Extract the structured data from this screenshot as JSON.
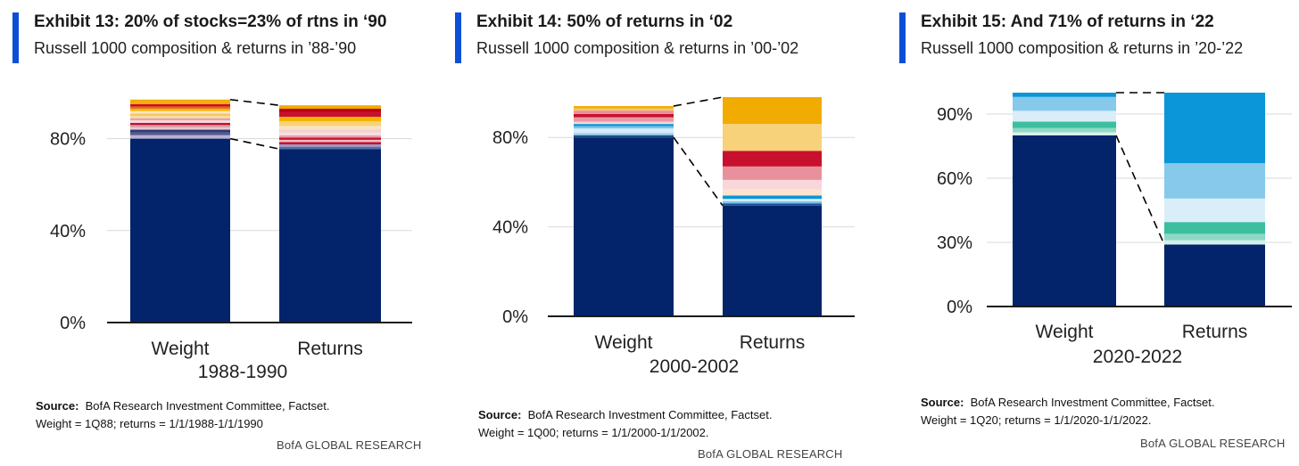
{
  "colors": {
    "accent": "#0b4fd6",
    "navy": "#03246b",
    "grid": "#d9d9d9",
    "connector": "#000000"
  },
  "exhibits": [
    {
      "title": "Exhibit 13: 20% of stocks=23% of rtns in ‘90",
      "subtitle": "Russell 1000 composition & returns in ’88-’90",
      "source_label": "Source:",
      "source_text": "BofA Research Investment Committee, Factset.",
      "note": "Weight = 1Q88;  returns = 1/1/1988-1/1/1990",
      "brand": "BofA GLOBAL RESEARCH"
    },
    {
      "title": "Exhibit 14: 50% of returns in ‘02",
      "subtitle": "Russell 1000 composition & returns in ’00-’02",
      "source_label": "Source:",
      "source_text": "BofA Research Investment Committee, Factset.",
      "note": "Weight = 1Q00;  returns = 1/1/2000-1/1/2002.",
      "brand": "BofA GLOBAL RESEARCH"
    },
    {
      "title": "Exhibit 15: And 71% of returns in ‘22",
      "subtitle": "Russell 1000 composition & returns in ’20-’22",
      "source_label": "Source:",
      "source_text": "BofA Research Investment Committee, Factset.",
      "note": "Weight = 1Q20;  returns = 1/1/2020-1/1/2022.",
      "brand": "BofA GLOBAL RESEARCH"
    }
  ],
  "chart_data": [
    {
      "type": "bar",
      "stacked": true,
      "categories": [
        "Weight",
        "Returns"
      ],
      "xlabel": "1988-1990",
      "ylim": [
        0,
        100
      ],
      "yticks": [
        0,
        40,
        80
      ],
      "tick_suffix": "%",
      "grid": true,
      "connectors": true,
      "stacks": [
        {
          "category": "Weight",
          "segments": [
            {
              "value": 80,
              "color": "#03246b"
            },
            {
              "value": 1.5,
              "color": "#b8b2d6"
            },
            {
              "value": 1.2,
              "color": "#5a5a8c"
            },
            {
              "value": 1.2,
              "color": "#2e3a78"
            },
            {
              "value": 1.0,
              "color": "#e8c9cf"
            },
            {
              "value": 1.0,
              "color": "#d6a2ac"
            },
            {
              "value": 1.0,
              "color": "#c8102e"
            },
            {
              "value": 1.0,
              "color": "#f7e0e3"
            },
            {
              "value": 1.0,
              "color": "#e8a0a9"
            },
            {
              "value": 1.0,
              "color": "#f9dca0"
            },
            {
              "value": 1.1,
              "color": "#f4c95d"
            },
            {
              "value": 1.0,
              "color": "#fde8c4"
            },
            {
              "value": 1.0,
              "color": "#f5b700"
            },
            {
              "value": 1.0,
              "color": "#e46b1e"
            },
            {
              "value": 1.0,
              "color": "#c8102e"
            },
            {
              "value": 1.0,
              "color": "#f5a800"
            },
            {
              "value": 1.0,
              "color": "#f2ab00"
            }
          ]
        },
        {
          "category": "Returns",
          "segments": [
            {
              "value": 75.5,
              "color": "#03246b"
            },
            {
              "value": 1.0,
              "color": "#5b6aa0"
            },
            {
              "value": 1.0,
              "color": "#9a9cc8"
            },
            {
              "value": 1.0,
              "color": "#c8102e"
            },
            {
              "value": 1.0,
              "color": "#f4b9c0"
            },
            {
              "value": 1.0,
              "color": "#c8102e"
            },
            {
              "value": 1.0,
              "color": "#e8a0a9"
            },
            {
              "value": 1.2,
              "color": "#f7dfe2"
            },
            {
              "value": 1.3,
              "color": "#f3cdd2"
            },
            {
              "value": 1.5,
              "color": "#f8e4c0"
            },
            {
              "value": 2.0,
              "color": "#f7d27a"
            },
            {
              "value": 2.0,
              "color": "#f4b400"
            },
            {
              "value": 2.0,
              "color": "#c8102e"
            },
            {
              "value": 1.5,
              "color": "#b8000f"
            },
            {
              "value": 1.5,
              "color": "#f2a900"
            }
          ]
        }
      ],
      "connector_values": [
        100,
        80
      ]
    },
    {
      "type": "bar",
      "stacked": true,
      "categories": [
        "Weight",
        "Returns"
      ],
      "xlabel": "2000-2002",
      "ylim": [
        0,
        100
      ],
      "yticks": [
        0,
        40,
        80
      ],
      "tick_suffix": "%",
      "grid": true,
      "connectors": true,
      "stacks": [
        {
          "category": "Weight",
          "segments": [
            {
              "value": 80,
              "color": "#03246b"
            },
            {
              "value": 1.0,
              "color": "#1a4f8a"
            },
            {
              "value": 1.0,
              "color": "#9fd0ee"
            },
            {
              "value": 2.0,
              "color": "#d6ecf8"
            },
            {
              "value": 1.0,
              "color": "#7cc4e8"
            },
            {
              "value": 1.0,
              "color": "#0a96d8"
            },
            {
              "value": 1.0,
              "color": "#f6d6d6"
            },
            {
              "value": 2.0,
              "color": "#e89aa4"
            },
            {
              "value": 1.5,
              "color": "#c8102e"
            },
            {
              "value": 1.5,
              "color": "#e8919c"
            },
            {
              "value": 1.0,
              "color": "#f5c76b"
            },
            {
              "value": 1.0,
              "color": "#f2ab00"
            }
          ]
        },
        {
          "category": "Returns",
          "segments": [
            {
              "value": 49.5,
              "color": "#03246b"
            },
            {
              "value": 1.0,
              "color": "#1b4f95"
            },
            {
              "value": 1.0,
              "color": "#7cc4e8"
            },
            {
              "value": 1.0,
              "color": "#d9eef9"
            },
            {
              "value": 1.5,
              "color": "#0a96d8"
            },
            {
              "value": 3.0,
              "color": "#fbe3cf"
            },
            {
              "value": 4.0,
              "color": "#f8d6da"
            },
            {
              "value": 6.0,
              "color": "#e8919c"
            },
            {
              "value": 7.0,
              "color": "#c8102e"
            },
            {
              "value": 12.0,
              "color": "#f7d27a"
            },
            {
              "value": 12.0,
              "color": "#f2ab00"
            }
          ]
        }
      ],
      "connector_values": [
        100,
        80
      ]
    },
    {
      "type": "bar",
      "stacked": true,
      "categories": [
        "Weight",
        "Returns"
      ],
      "xlabel": "2020-2022",
      "ylim": [
        0,
        100
      ],
      "yticks": [
        0,
        30,
        60,
        90
      ],
      "tick_suffix": "%",
      "grid": true,
      "connectors": true,
      "stacks": [
        {
          "category": "Weight",
          "segments": [
            {
              "value": 80,
              "color": "#03246b"
            },
            {
              "value": 1.5,
              "color": "#d4f0ea"
            },
            {
              "value": 2.0,
              "color": "#8fd8c5"
            },
            {
              "value": 3.0,
              "color": "#3bbf9f"
            },
            {
              "value": 5.0,
              "color": "#d9eef9"
            },
            {
              "value": 6.5,
              "color": "#87c9ea"
            },
            {
              "value": 2.0,
              "color": "#0a96d8"
            }
          ]
        },
        {
          "category": "Returns",
          "segments": [
            {
              "value": 29,
              "color": "#03246b"
            },
            {
              "value": 2.0,
              "color": "#d4f0ea"
            },
            {
              "value": 3.0,
              "color": "#8fd8c5"
            },
            {
              "value": 5.5,
              "color": "#3bbf9f"
            },
            {
              "value": 11.0,
              "color": "#d9eef9"
            },
            {
              "value": 16.5,
              "color": "#87c9ea"
            },
            {
              "value": 33.0,
              "color": "#0a96d8"
            }
          ]
        }
      ],
      "connector_values": [
        100,
        80
      ]
    }
  ]
}
